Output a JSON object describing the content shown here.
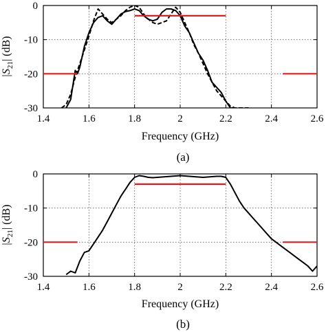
{
  "chart_data": [
    {
      "type": "line",
      "caption": "(a)",
      "xlabel": "Frequency (GHz)",
      "ylabel_main": "|S",
      "ylabel_sub": "21",
      "ylabel_unit": "| (dB)",
      "xlim": [
        1.4,
        2.6
      ],
      "ylim": [
        -30,
        0
      ],
      "xticks": [
        "1.4",
        "1.6",
        "1.8",
        "2",
        "2.2",
        "2.4",
        "2.6"
      ],
      "yticks": [
        "0",
        "-10",
        "-20",
        "-30"
      ],
      "grid": true,
      "color_curve": "#000000",
      "color_mask": "#e41a1c",
      "series": [
        {
          "style": "solid",
          "x": [
            1.5,
            1.52,
            1.54,
            1.55,
            1.56,
            1.58,
            1.6,
            1.62,
            1.64,
            1.66,
            1.68,
            1.7,
            1.72,
            1.74,
            1.76,
            1.78,
            1.8,
            1.82,
            1.84,
            1.86,
            1.88,
            1.9,
            1.92,
            1.94,
            1.96,
            1.98,
            2.0,
            2.02,
            2.04,
            2.06,
            2.08,
            2.1,
            2.12,
            2.14,
            2.16,
            2.18,
            2.2,
            2.22,
            2.24
          ],
          "values": [
            -30,
            -27.5,
            -19,
            -20,
            -18,
            -12,
            -8,
            -5,
            -3.5,
            -3,
            -4.5,
            -5.5,
            -4,
            -2.5,
            -1.8,
            -1.5,
            -1,
            -1.5,
            -3,
            -4,
            -4.5,
            -4,
            -2,
            -1,
            -1,
            -1.5,
            -3,
            -6,
            -8,
            -11,
            -14,
            -16,
            -19,
            -22.5,
            -24,
            -25.5,
            -28,
            -30,
            -30
          ]
        },
        {
          "style": "dashed",
          "x": [
            1.48,
            1.5,
            1.52,
            1.54,
            1.56,
            1.58,
            1.6,
            1.62,
            1.64,
            1.66,
            1.68,
            1.7,
            1.72,
            1.74,
            1.76,
            1.78,
            1.8,
            1.82,
            1.84,
            1.86,
            1.88,
            1.9,
            1.92,
            1.94,
            1.96,
            1.98,
            2.0,
            2.02,
            2.04,
            2.06,
            2.08,
            2.1,
            2.12,
            2.14,
            2.16,
            2.18,
            2.2,
            2.22,
            2.24,
            2.26,
            2.28,
            2.3
          ],
          "values": [
            -30,
            -29,
            -26,
            -21,
            -17,
            -13,
            -9,
            -4.5,
            -1,
            -2.5,
            -4,
            -5,
            -4,
            -3,
            -1.5,
            -0.5,
            0,
            -0.5,
            -2.5,
            -4,
            -5,
            -5.5,
            -5,
            -4.5,
            -2.5,
            -0.5,
            -2,
            -5,
            -8,
            -11.5,
            -14,
            -17,
            -20,
            -22.5,
            -25,
            -26.5,
            -28,
            -29.5,
            -30,
            -30,
            -30,
            -30
          ]
        }
      ],
      "masks": [
        {
          "x": [
            1.4,
            1.55
          ],
          "y": -20
        },
        {
          "x": [
            1.8,
            2.2
          ],
          "y": -3
        },
        {
          "x": [
            2.45,
            2.6
          ],
          "y": -20
        }
      ]
    },
    {
      "type": "line",
      "caption": "(b)",
      "xlabel": "Frequency (GHz)",
      "ylabel_main": "|S",
      "ylabel_sub": "21",
      "ylabel_unit": "| (dB)",
      "xlim": [
        1.4,
        2.6
      ],
      "ylim": [
        -30,
        0
      ],
      "xticks": [
        "1.4",
        "1.6",
        "1.8",
        "2",
        "2.2",
        "2.4",
        "2.6"
      ],
      "yticks": [
        "0",
        "-10",
        "-20",
        "-30"
      ],
      "grid": true,
      "color_curve": "#000000",
      "color_mask": "#e41a1c",
      "series": [
        {
          "style": "solid",
          "x": [
            1.5,
            1.52,
            1.54,
            1.56,
            1.58,
            1.6,
            1.62,
            1.64,
            1.66,
            1.68,
            1.7,
            1.72,
            1.74,
            1.76,
            1.78,
            1.8,
            1.82,
            1.84,
            1.86,
            1.88,
            1.9,
            1.92,
            1.94,
            1.96,
            1.98,
            2.0,
            2.02,
            2.04,
            2.06,
            2.08,
            2.1,
            2.12,
            2.14,
            2.16,
            2.18,
            2.2,
            2.22,
            2.24,
            2.26,
            2.28,
            2.3,
            2.32,
            2.34,
            2.36,
            2.38,
            2.4,
            2.42,
            2.44,
            2.46,
            2.48,
            2.5,
            2.52,
            2.54,
            2.56,
            2.58,
            2.6
          ],
          "values": [
            -29.5,
            -28.5,
            -29,
            -25.5,
            -23,
            -22.5,
            -20.5,
            -18.5,
            -16.5,
            -14,
            -11.5,
            -9,
            -6.5,
            -4.5,
            -2.5,
            -1,
            -0.5,
            -0.7,
            -1,
            -1.1,
            -1,
            -0.9,
            -0.8,
            -0.7,
            -0.6,
            -0.5,
            -0.6,
            -0.7,
            -0.8,
            -0.9,
            -1,
            -0.9,
            -0.8,
            -0.7,
            -0.7,
            -1,
            -3,
            -5.5,
            -8,
            -10,
            -11.5,
            -13,
            -14.5,
            -16,
            -17.5,
            -19,
            -20,
            -21,
            -22,
            -23,
            -24,
            -25,
            -26,
            -27,
            -28.5,
            -27
          ]
        }
      ],
      "masks": [
        {
          "x": [
            1.4,
            1.55
          ],
          "y": -20
        },
        {
          "x": [
            1.8,
            2.2
          ],
          "y": -3
        },
        {
          "x": [
            2.45,
            2.6
          ],
          "y": -20
        }
      ]
    }
  ]
}
